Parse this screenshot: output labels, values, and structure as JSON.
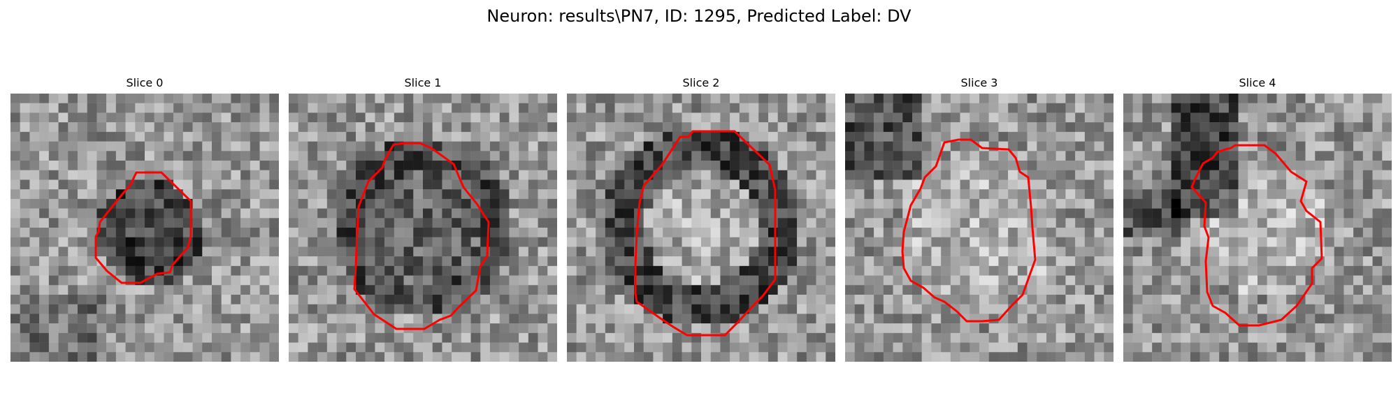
{
  "figure": {
    "title": "Neuron: results\\PN7, ID: 1295, Predicted Label: DV"
  },
  "panels": [
    {
      "title": "Slice 0",
      "seed": 11,
      "blob": "dark-core"
    },
    {
      "title": "Slice 1",
      "seed": 23,
      "blob": "dark-ring-large"
    },
    {
      "title": "Slice 2",
      "seed": 37,
      "blob": "dark-ring-open"
    },
    {
      "title": "Slice 3",
      "seed": 41,
      "blob": "light-core"
    },
    {
      "title": "Slice 4",
      "seed": 59,
      "blob": "light-core-dark-corner"
    }
  ],
  "colors": {
    "background": "#ffffff",
    "contour": "#ff0000"
  }
}
